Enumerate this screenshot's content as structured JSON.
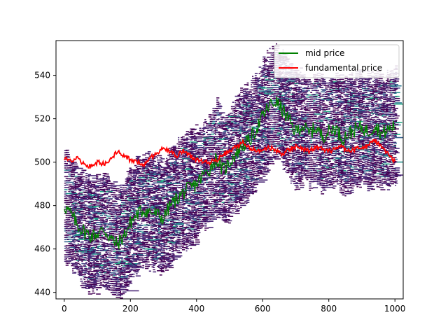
{
  "chart_data": {
    "type": "line",
    "xlim": [
      -25,
      1025
    ],
    "ylim": [
      437,
      556
    ],
    "x_ticks": [
      0,
      200,
      400,
      600,
      800,
      1000
    ],
    "y_ticks": [
      440,
      460,
      480,
      500,
      520,
      540
    ],
    "x_tick_labels": [
      "0",
      "200",
      "400",
      "600",
      "800",
      "1000"
    ],
    "y_tick_labels": [
      "440",
      "460",
      "480",
      "500",
      "520",
      "540"
    ],
    "legend_position": "top-right",
    "grid": false,
    "series": [
      {
        "name": "mid price",
        "color": "#008000",
        "x": [
          0,
          20,
          40,
          60,
          80,
          100,
          120,
          140,
          160,
          180,
          200,
          220,
          240,
          260,
          280,
          300,
          320,
          340,
          360,
          380,
          400,
          420,
          440,
          460,
          480,
          500,
          520,
          540,
          560,
          580,
          600,
          620,
          640,
          660,
          680,
          700,
          720,
          740,
          760,
          780,
          800,
          820,
          840,
          860,
          880,
          900,
          920,
          940,
          960,
          980,
          1000
        ],
        "values": [
          480,
          476,
          471,
          468,
          466,
          467,
          469,
          465,
          462,
          466,
          472,
          476,
          478,
          477,
          476,
          474,
          480,
          483,
          486,
          488,
          490,
          494,
          497,
          502,
          496,
          500,
          504,
          508,
          510,
          515,
          521,
          526,
          528,
          524,
          519,
          514,
          517,
          513,
          516,
          512,
          514,
          516,
          511,
          513,
          515,
          516,
          514,
          517,
          513,
          515,
          517
        ]
      },
      {
        "name": "fundamental price",
        "color": "#ff0000",
        "x": [
          0,
          20,
          40,
          60,
          80,
          100,
          120,
          140,
          160,
          180,
          200,
          220,
          240,
          260,
          280,
          300,
          320,
          340,
          360,
          380,
          400,
          420,
          440,
          460,
          480,
          500,
          520,
          540,
          560,
          580,
          600,
          620,
          640,
          660,
          680,
          700,
          720,
          740,
          760,
          780,
          800,
          820,
          840,
          860,
          880,
          900,
          920,
          940,
          960,
          980,
          1000
        ],
        "values": [
          502,
          500,
          502,
          499,
          498,
          500,
          499,
          501,
          505,
          503,
          501,
          500,
          499,
          502,
          504,
          507,
          505,
          503,
          505,
          503,
          501,
          500,
          500,
          501,
          503,
          505,
          507,
          509,
          507,
          505,
          506,
          507,
          505,
          504,
          506,
          507,
          506,
          505,
          507,
          506,
          505,
          506,
          507,
          505,
          506,
          507,
          508,
          510,
          507,
          504,
          500
        ]
      }
    ]
  },
  "colors": {
    "background": "#ffffff",
    "heatmap_palette": [
      "#440154",
      "#482475",
      "#414487",
      "#355f8d",
      "#2a788e",
      "#21918c",
      "#22a884",
      "#44bf70",
      "#7ad151",
      "#bddf26"
    ]
  }
}
